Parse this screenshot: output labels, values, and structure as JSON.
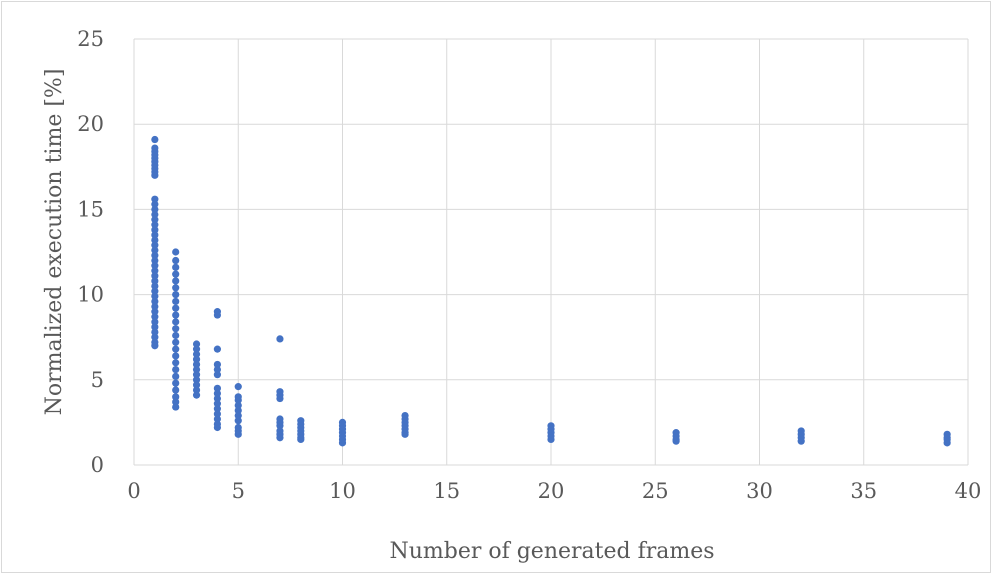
{
  "chart_data": {
    "type": "scatter",
    "title": "",
    "xlabel": "Number of generated frames",
    "ylabel": "Normalized execution time [%]",
    "xlim": [
      0,
      40
    ],
    "ylim": [
      0,
      25
    ],
    "xticks": [
      0,
      5,
      10,
      15,
      20,
      25,
      30,
      35,
      40
    ],
    "yticks": [
      0,
      5,
      10,
      15,
      20,
      25
    ],
    "grid": true,
    "legend": "none",
    "marker_color": "#4472C4",
    "series": [
      {
        "points": [
          [
            1,
            19.1
          ],
          [
            1,
            18.6
          ],
          [
            1,
            18.4
          ],
          [
            1,
            18.2
          ],
          [
            1,
            18.0
          ],
          [
            1,
            17.8
          ],
          [
            1,
            17.6
          ],
          [
            1,
            17.4
          ],
          [
            1,
            17.2
          ],
          [
            1,
            17.0
          ],
          [
            1,
            15.6
          ],
          [
            1,
            15.3
          ],
          [
            1,
            15.0
          ],
          [
            1,
            14.7
          ],
          [
            1,
            14.4
          ],
          [
            1,
            14.1
          ],
          [
            1,
            13.8
          ],
          [
            1,
            13.5
          ],
          [
            1,
            13.2
          ],
          [
            1,
            12.9
          ],
          [
            1,
            12.6
          ],
          [
            1,
            12.3
          ],
          [
            1,
            12.0
          ],
          [
            1,
            11.7
          ],
          [
            1,
            11.4
          ],
          [
            1,
            11.1
          ],
          [
            1,
            10.8
          ],
          [
            1,
            10.5
          ],
          [
            1,
            10.2
          ],
          [
            1,
            9.9
          ],
          [
            1,
            9.6
          ],
          [
            1,
            9.3
          ],
          [
            1,
            9.0
          ],
          [
            1,
            8.7
          ],
          [
            1,
            8.4
          ],
          [
            1,
            8.1
          ],
          [
            1,
            7.8
          ],
          [
            1,
            7.5
          ],
          [
            1,
            7.2
          ],
          [
            1,
            7.0
          ],
          [
            2,
            12.5
          ],
          [
            2,
            12.0
          ],
          [
            2,
            11.6
          ],
          [
            2,
            11.2
          ],
          [
            2,
            10.8
          ],
          [
            2,
            10.4
          ],
          [
            2,
            10.0
          ],
          [
            2,
            9.6
          ],
          [
            2,
            9.2
          ],
          [
            2,
            8.8
          ],
          [
            2,
            8.4
          ],
          [
            2,
            8.0
          ],
          [
            2,
            7.6
          ],
          [
            2,
            7.2
          ],
          [
            2,
            6.8
          ],
          [
            2,
            6.4
          ],
          [
            2,
            6.0
          ],
          [
            2,
            5.6
          ],
          [
            2,
            5.2
          ],
          [
            2,
            4.8
          ],
          [
            2,
            4.4
          ],
          [
            2,
            4.0
          ],
          [
            2,
            3.7
          ],
          [
            2,
            3.4
          ],
          [
            3,
            7.1
          ],
          [
            3,
            6.8
          ],
          [
            3,
            6.5
          ],
          [
            3,
            6.2
          ],
          [
            3,
            5.9
          ],
          [
            3,
            5.6
          ],
          [
            3,
            5.3
          ],
          [
            3,
            5.0
          ],
          [
            3,
            4.7
          ],
          [
            3,
            4.4
          ],
          [
            3,
            4.1
          ],
          [
            4,
            9.0
          ],
          [
            4,
            8.8
          ],
          [
            4,
            6.8
          ],
          [
            4,
            5.9
          ],
          [
            4,
            5.6
          ],
          [
            4,
            5.3
          ],
          [
            4,
            4.5
          ],
          [
            4,
            4.2
          ],
          [
            4,
            3.9
          ],
          [
            4,
            3.6
          ],
          [
            4,
            3.3
          ],
          [
            4,
            3.0
          ],
          [
            4,
            2.7
          ],
          [
            4,
            2.4
          ],
          [
            4,
            2.2
          ],
          [
            5,
            4.6
          ],
          [
            5,
            4.0
          ],
          [
            5,
            3.8
          ],
          [
            5,
            3.5
          ],
          [
            5,
            3.2
          ],
          [
            5,
            2.9
          ],
          [
            5,
            2.6
          ],
          [
            5,
            2.2
          ],
          [
            5,
            2.0
          ],
          [
            5,
            1.8
          ],
          [
            7,
            7.4
          ],
          [
            7,
            4.3
          ],
          [
            7,
            4.1
          ],
          [
            7,
            3.9
          ],
          [
            7,
            2.7
          ],
          [
            7,
            2.5
          ],
          [
            7,
            2.3
          ],
          [
            7,
            2.0
          ],
          [
            7,
            1.8
          ],
          [
            7,
            1.6
          ],
          [
            8,
            2.6
          ],
          [
            8,
            2.4
          ],
          [
            8,
            2.2
          ],
          [
            8,
            2.0
          ],
          [
            8,
            1.8
          ],
          [
            8,
            1.6
          ],
          [
            8,
            1.5
          ],
          [
            10,
            2.5
          ],
          [
            10,
            2.3
          ],
          [
            10,
            2.1
          ],
          [
            10,
            1.9
          ],
          [
            10,
            1.7
          ],
          [
            10,
            1.5
          ],
          [
            10,
            1.3
          ],
          [
            13,
            2.9
          ],
          [
            13,
            2.7
          ],
          [
            13,
            2.5
          ],
          [
            13,
            2.3
          ],
          [
            13,
            2.1
          ],
          [
            13,
            1.9
          ],
          [
            13,
            1.8
          ],
          [
            20,
            2.3
          ],
          [
            20,
            2.1
          ],
          [
            20,
            1.9
          ],
          [
            20,
            1.7
          ],
          [
            20,
            1.5
          ],
          [
            26,
            1.9
          ],
          [
            26,
            1.7
          ],
          [
            26,
            1.5
          ],
          [
            26,
            1.4
          ],
          [
            32,
            2.0
          ],
          [
            32,
            1.8
          ],
          [
            32,
            1.6
          ],
          [
            32,
            1.4
          ],
          [
            39,
            1.8
          ],
          [
            39,
            1.6
          ],
          [
            39,
            1.5
          ],
          [
            39,
            1.3
          ]
        ]
      }
    ]
  }
}
